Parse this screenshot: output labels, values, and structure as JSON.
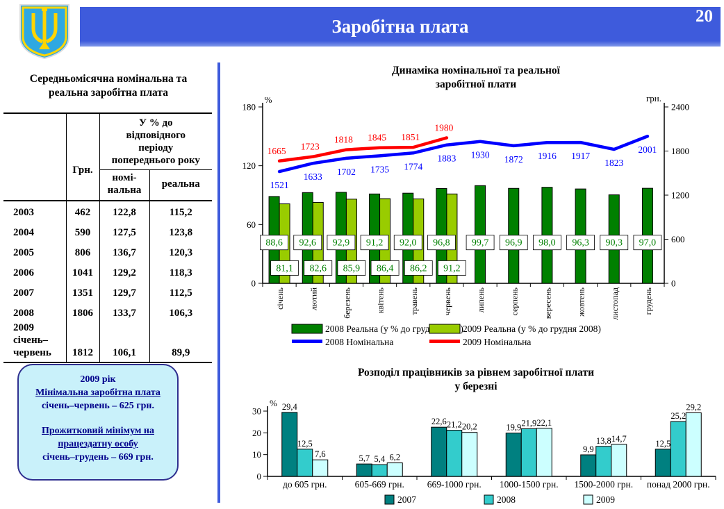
{
  "header": {
    "title": "Заробітна плата",
    "page_number": "20",
    "banner_color": "#3E5BDC",
    "coat_of_arms": "ukraine-trident-emblem"
  },
  "left_panel": {
    "heading": "Середньомісячна номінальна та\nреальна  заробітна плата",
    "table": {
      "col_grn": "Грн.",
      "col_pct_group": "У % до\nвідповідного\nперіоду\nпопереднього року",
      "col_nominal": "номі-\nнальна",
      "col_real": "реальна",
      "rows": [
        {
          "year": "2003",
          "grn": "462",
          "nominal": "122,8",
          "real": "115,2"
        },
        {
          "year": "2004",
          "grn": "590",
          "nominal": "127,5",
          "real": "123,8"
        },
        {
          "year": "2005",
          "grn": "806",
          "nominal": "136,7",
          "real": "120,3"
        },
        {
          "year": "2006",
          "grn": "1041",
          "nominal": "129,2",
          "real": "118,3"
        },
        {
          "year": "2007",
          "grn": "1351",
          "nominal": "129,7",
          "real": "112,5"
        },
        {
          "year": "2008",
          "grn": "1806",
          "nominal": "133,7",
          "real": "106,3"
        },
        {
          "year": "2009 січень–червень",
          "grn": "1812",
          "nominal": "106,1",
          "real": "89,9"
        }
      ]
    },
    "info_box": {
      "line1": "2009 рік",
      "line2": "Мінімальна заробітна плата",
      "line3": "січень–червень – 625 грн.",
      "line4": "Прожитковий мінімум на працездатну особу",
      "line5": "січень–грудень – 669 грн."
    }
  },
  "chart_data": [
    {
      "type": "combo-bar-line",
      "title": "Динаміка номінальної та реальної\nзаробітної плати",
      "left_axis": {
        "label": "%",
        "ticks": [
          0,
          60,
          120,
          180
        ],
        "max": 180
      },
      "right_axis": {
        "label": "грн.",
        "ticks": [
          0,
          600,
          1200,
          1800,
          2400
        ],
        "max": 2400
      },
      "categories": [
        "січень",
        "лютий",
        "березень",
        "квітень",
        "травень",
        "червень",
        "липень",
        "серпень",
        "вересень",
        "жовтень",
        "листопад",
        "грудень"
      ],
      "series": [
        {
          "name": "2008 Реальна (у % до грудня 2007)",
          "type": "bar",
          "axis": "left",
          "color": "#008000",
          "values": [
            88.6,
            92.6,
            92.9,
            91.2,
            92.0,
            96.8,
            99.7,
            96.9,
            98.0,
            96.3,
            90.3,
            97.0
          ],
          "labels": [
            "88,6",
            "92,6",
            "92,9",
            "91,2",
            "92,0",
            "96,8",
            "99,7",
            "96,9",
            "98,0",
            "96,3",
            "90,3",
            "97,0"
          ]
        },
        {
          "name": "2009 Реальна (у % до грудня 2008)",
          "type": "bar",
          "axis": "left",
          "color": "#99CC00",
          "values": [
            81.1,
            82.6,
            85.9,
            86.4,
            86.2,
            91.2
          ],
          "labels": [
            "81,1",
            "82,6",
            "85,9",
            "86,4",
            "86,2",
            "91,2"
          ]
        },
        {
          "name": "2008 Номінальна",
          "type": "line",
          "axis": "right",
          "color": "#0000FF",
          "values": [
            1521,
            1633,
            1702,
            1735,
            1774,
            1883,
            1930,
            1872,
            1916,
            1917,
            1823,
            2001
          ],
          "labels": [
            "1521",
            "1633",
            "1702",
            "1735",
            "1774",
            "1883",
            "1930",
            "1872",
            "1916",
            "1917",
            "1823",
            "2001"
          ]
        },
        {
          "name": "2009 Номінальна",
          "type": "line",
          "axis": "right",
          "color": "#FF0000",
          "values": [
            1665,
            1723,
            1818,
            1845,
            1851,
            1980
          ],
          "labels": [
            "1665",
            "1723",
            "1818",
            "1845",
            "1851",
            "1980"
          ]
        }
      ],
      "bar_label_box": {
        "fill": "#FFFFFF",
        "text_color": "#008000"
      },
      "grid": false,
      "legend_position": "bottom"
    },
    {
      "type": "bar",
      "title": "Розподіл працівників за рівнем заробітної плати\nу березні",
      "ylabel": "%",
      "yticks": [
        0,
        10,
        20,
        30
      ],
      "ylim": [
        0,
        30
      ],
      "categories": [
        "до 605 грн.",
        "605-669 грн.",
        "669-1000 грн.",
        "1000-1500 грн.",
        "1500-2000 грн.",
        "понад 2000 грн."
      ],
      "series": [
        {
          "name": "2007",
          "color": "#008080",
          "values": [
            29.4,
            5.7,
            22.6,
            19.9,
            9.9,
            12.5
          ],
          "labels": [
            "29,4",
            "5,7",
            "22,6",
            "19,9",
            "9,9",
            "12,5"
          ]
        },
        {
          "name": "2008",
          "color": "#33CCCC",
          "values": [
            12.5,
            5.4,
            21.2,
            21.9,
            13.8,
            25.2
          ],
          "labels": [
            "12,5",
            "5,4",
            "21,2",
            "21,9",
            "13,8",
            "25,2"
          ]
        },
        {
          "name": "2009",
          "color": "#CCFFFF",
          "values": [
            7.6,
            6.2,
            20.2,
            22.1,
            14.7,
            29.2
          ],
          "labels": [
            "7,6",
            "6,2",
            "20,2",
            "22,1",
            "14,7",
            "29,2"
          ]
        }
      ],
      "grid": false,
      "legend_position": "bottom"
    }
  ]
}
